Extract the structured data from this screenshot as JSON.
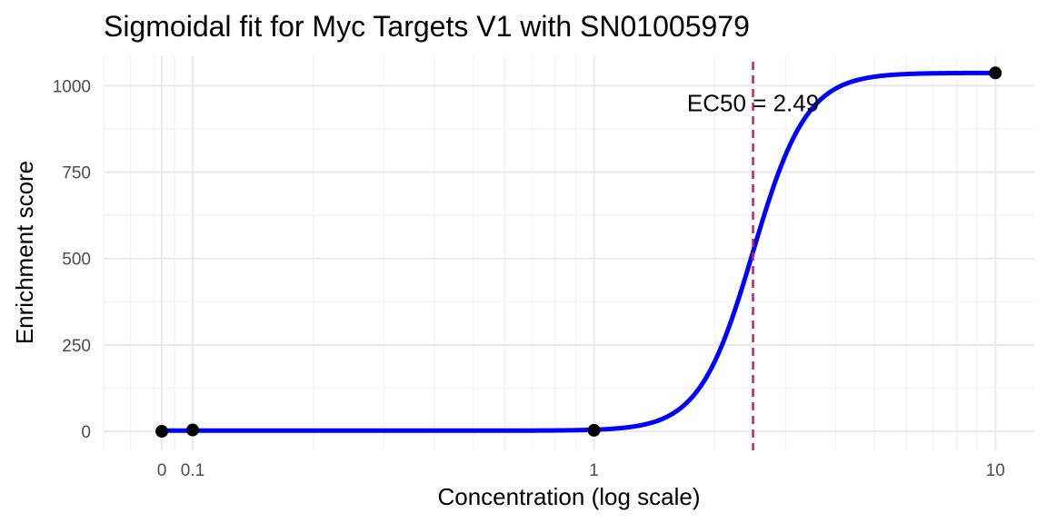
{
  "chart_data": {
    "type": "line",
    "title": "Sigmoidal fit for Myc Targets V1 with SN01005979",
    "xlabel": "Concentration (log scale)",
    "ylabel": "Enrichment score",
    "x_scale": "log10",
    "xlim": [
      0.06,
      12.5
    ],
    "ylim": [
      -55,
      1085
    ],
    "x_ticks": [
      {
        "value": 0.0838,
        "label": "0"
      },
      {
        "value": 0.1,
        "label": "0.1"
      },
      {
        "value": 1,
        "label": "1"
      },
      {
        "value": 10,
        "label": "10"
      }
    ],
    "y_ticks": [
      0,
      250,
      500,
      750,
      1000
    ],
    "y_tick_labels": [
      "0",
      "250",
      "500",
      "750",
      "1000"
    ],
    "grid": true,
    "points": [
      {
        "x": 0.0838,
        "y": 0
      },
      {
        "x": 0.1,
        "y": 4
      },
      {
        "x": 1,
        "y": 3
      },
      {
        "x": 10,
        "y": 1037
      }
    ],
    "fit": {
      "name": "",
      "color": "#0000ff",
      "bottom": 2,
      "top": 1037,
      "ec50": 2.49,
      "hill": 6.5,
      "x_from": 0.0838,
      "x_to": 10
    },
    "ec50_line": {
      "x": 2.49,
      "color": "#cc1f5c",
      "style": "dashed"
    },
    "annotation": {
      "text": "EC50 = 2.49",
      "x": 2.49,
      "y": 950
    },
    "colors": {
      "points": "#000000",
      "fit": "#0000ff",
      "ec50": "#cc1f5c"
    }
  }
}
